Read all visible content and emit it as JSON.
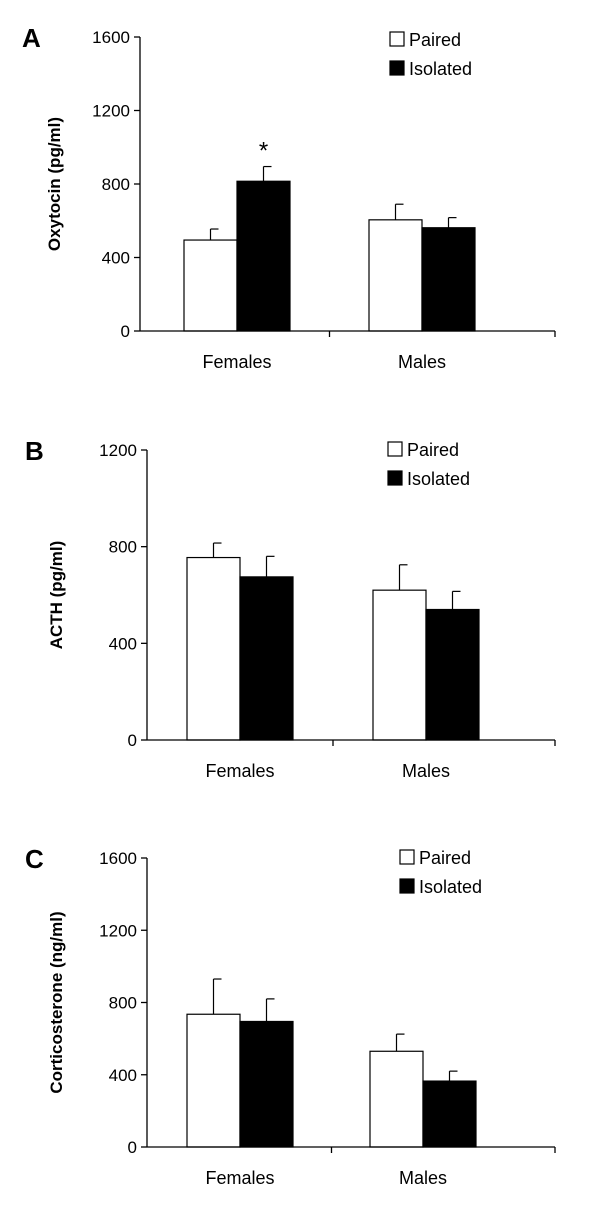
{
  "chart_data": [
    {
      "panel": "A",
      "type": "bar",
      "ylabel": "Oxytocin (pg/ml)",
      "categories": [
        "Females",
        "Males"
      ],
      "ylim": [
        0,
        1600
      ],
      "yticks": [
        "0",
        "400",
        "800",
        "1200",
        "1600"
      ],
      "series": [
        {
          "name": "Paired",
          "color": "#ffffff",
          "values": [
            495,
            605
          ],
          "errors": [
            60,
            85
          ]
        },
        {
          "name": "Isolated",
          "color": "#000000",
          "values": [
            815,
            562
          ],
          "errors": [
            80,
            55
          ]
        }
      ],
      "annotations": [
        {
          "text": "*",
          "category": 0,
          "series": 1
        }
      ],
      "legend": "top-right"
    },
    {
      "panel": "B",
      "type": "bar",
      "ylabel": "ACTH (pg/ml)",
      "categories": [
        "Females",
        "Males"
      ],
      "ylim": [
        0,
        1200
      ],
      "yticks": [
        "0",
        "400",
        "800",
        "1200"
      ],
      "series": [
        {
          "name": "Paired",
          "color": "#ffffff",
          "values": [
            755,
            620
          ],
          "errors": [
            60,
            105
          ]
        },
        {
          "name": "Isolated",
          "color": "#000000",
          "values": [
            675,
            540
          ],
          "errors": [
            85,
            75
          ]
        }
      ],
      "annotations": [],
      "legend": "top-right"
    },
    {
      "panel": "C",
      "type": "bar",
      "ylabel": "Corticosterone (ng/ml)",
      "categories": [
        "Females",
        "Males"
      ],
      "ylim": [
        0,
        1600
      ],
      "yticks": [
        "0",
        "400",
        "800",
        "1200",
        "1600"
      ],
      "series": [
        {
          "name": "Paired",
          "color": "#ffffff",
          "values": [
            735,
            530
          ],
          "errors": [
            195,
            95
          ]
        },
        {
          "name": "Isolated",
          "color": "#000000",
          "values": [
            695,
            365
          ],
          "errors": [
            125,
            55
          ]
        }
      ],
      "annotations": [],
      "legend": "top-right"
    }
  ]
}
